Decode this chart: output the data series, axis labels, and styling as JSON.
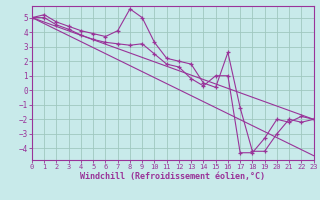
{
  "background_color": "#c8eaea",
  "grid_color": "#a0c8c0",
  "line_color": "#993399",
  "axis_color": "#993399",
  "xlabel": "Windchill (Refroidissement éolien,°C)",
  "xlim": [
    0,
    23
  ],
  "ylim": [
    -4.8,
    5.8
  ],
  "xticks": [
    0,
    1,
    2,
    3,
    4,
    5,
    6,
    7,
    8,
    9,
    10,
    11,
    12,
    13,
    14,
    15,
    16,
    17,
    18,
    19,
    20,
    21,
    22,
    23
  ],
  "yticks": [
    -4,
    -3,
    -2,
    -1,
    0,
    1,
    2,
    3,
    4,
    5
  ],
  "line1_x": [
    0,
    1,
    2,
    3,
    4,
    5,
    6,
    7,
    8,
    9,
    10,
    11,
    12,
    13,
    14,
    15,
    16,
    17,
    18,
    19,
    20,
    21,
    22,
    23
  ],
  "line1_y": [
    5.0,
    5.2,
    4.7,
    4.4,
    4.1,
    3.9,
    3.7,
    4.1,
    5.6,
    5.0,
    3.3,
    2.2,
    2.0,
    1.8,
    0.5,
    0.2,
    2.6,
    -1.2,
    -4.2,
    -4.2,
    -3.0,
    -2.0,
    -2.2,
    -2.0
  ],
  "line2_x": [
    0,
    1,
    2,
    3,
    4,
    5,
    6,
    7,
    8,
    9,
    10,
    11,
    12,
    13,
    14,
    15,
    16,
    17,
    18,
    19,
    20,
    21,
    22,
    23
  ],
  "line2_y": [
    5.0,
    5.0,
    4.5,
    4.2,
    3.8,
    3.5,
    3.3,
    3.2,
    3.1,
    3.2,
    2.5,
    1.8,
    1.6,
    0.8,
    0.3,
    1.0,
    1.0,
    -4.3,
    -4.3,
    -3.3,
    -2.0,
    -2.2,
    -1.8,
    -2.0
  ],
  "line3_x": [
    0,
    23
  ],
  "line3_y": [
    5.0,
    -2.0
  ],
  "line4_x": [
    0,
    23
  ],
  "line4_y": [
    5.0,
    -4.5
  ]
}
